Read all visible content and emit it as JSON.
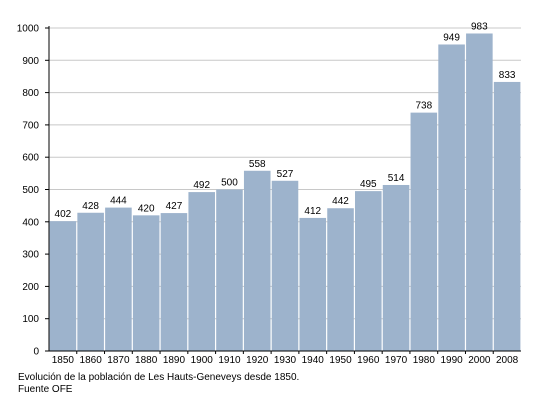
{
  "chart_data": {
    "type": "bar",
    "categories": [
      "1850",
      "1860",
      "1870",
      "1880",
      "1890",
      "1900",
      "1910",
      "1920",
      "1930",
      "1940",
      "1950",
      "1960",
      "1970",
      "1980",
      "1990",
      "2000",
      "2008"
    ],
    "values": [
      402,
      428,
      444,
      420,
      427,
      492,
      500,
      558,
      527,
      412,
      442,
      495,
      514,
      738,
      949,
      983,
      833
    ],
    "title": "",
    "xlabel": "",
    "ylabel": "",
    "ylim": [
      0,
      1000
    ],
    "yticks": [
      0,
      100,
      200,
      300,
      400,
      500,
      600,
      700,
      800,
      900,
      1000
    ],
    "grid": true,
    "legend": "none",
    "bar_color": "#9db3cc",
    "grid_color": "#c8c8c8",
    "axis_color": "#000000"
  },
  "caption": {
    "line1": "Evolución de la población de Les Hauts-Geneveys desde 1850.",
    "line2": "Fuente OFE"
  }
}
